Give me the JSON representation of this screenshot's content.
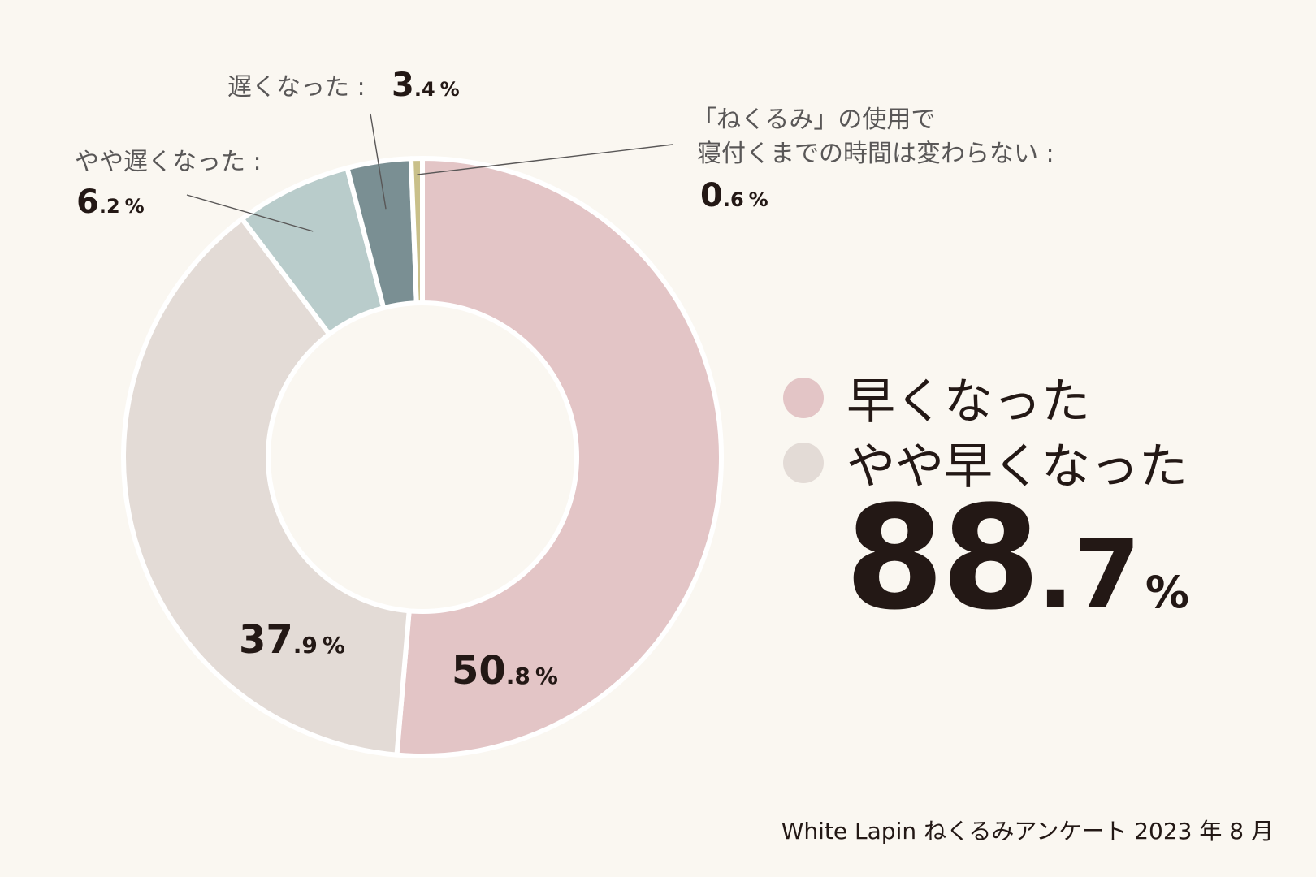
{
  "chart_data": {
    "type": "pie",
    "categories": [
      "早くなった",
      "やや早くなった",
      "やや遅くなった",
      "遅くなった",
      "「ねくるみ」の使用で寝付くまでの時間は変わらない"
    ],
    "values": [
      50.8,
      37.9,
      6.2,
      3.4,
      0.6
    ],
    "colors": [
      "#e3c5c6",
      "#e3dbd6",
      "#b9cccb",
      "#7a8f93",
      "#c9c08a"
    ],
    "labels": [
      {
        "int": "50",
        "dec": ".8",
        "unit": "%"
      },
      {
        "int": "37",
        "dec": ".9",
        "unit": "%"
      },
      {
        "name": "やや遅くなった :",
        "int": "6",
        "dec": ".2",
        "unit": "%"
      },
      {
        "name": "遅くなった :",
        "int": "3",
        "dec": ".4",
        "unit": "%"
      },
      {
        "name_line1": "「ねくるみ」の使用で",
        "name_line2": "寝付くまでの時間は変わらない :",
        "int": "0",
        "dec": ".6",
        "unit": "%"
      }
    ],
    "legend": [
      {
        "label": "早くなった",
        "color": "#e3c5c6"
      },
      {
        "label": "やや早くなった",
        "color": "#e3dbd6"
      }
    ],
    "total": {
      "int": "88",
      "dec": ".7",
      "unit": "%"
    },
    "source": "White Lapin ねくるみアンケート 2023 年 8 月"
  }
}
